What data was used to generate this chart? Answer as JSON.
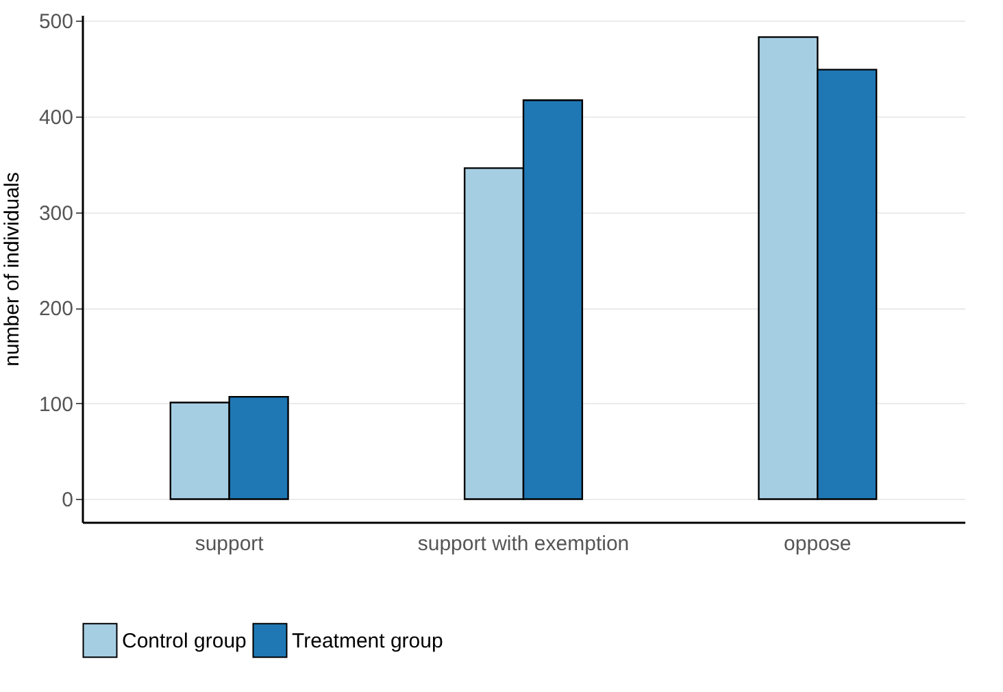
{
  "chart_data": {
    "type": "bar",
    "ylabel": "number of individuals",
    "categories": [
      "support",
      "support with exemption",
      "oppose"
    ],
    "series": [
      {
        "name": "Control group",
        "color": "#a6cee3",
        "values": [
          101,
          346,
          483
        ]
      },
      {
        "name": "Treatment group",
        "color": "#1f78b4",
        "values": [
          107,
          417,
          449
        ]
      }
    ],
    "ylim": [
      -24,
      506
    ],
    "yticks": [
      0,
      100,
      200,
      300,
      400,
      500
    ],
    "grid": "y",
    "legend": "bottom"
  }
}
